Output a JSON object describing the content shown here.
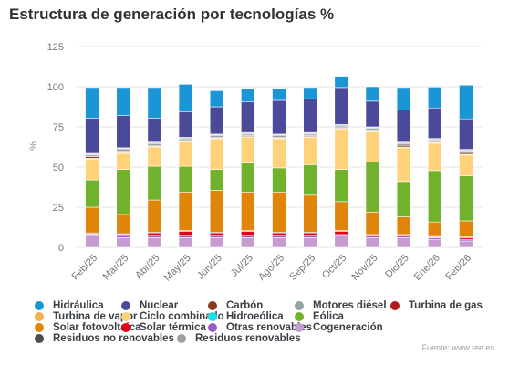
{
  "title": "Estructura de generación por tecnologías %",
  "source": "Fuente: www.ree.es",
  "chart_data": {
    "type": "bar",
    "stacked": true,
    "ylabel": "%",
    "ylim": [
      0,
      125
    ],
    "yticks": [
      0,
      25,
      50,
      75,
      100,
      125
    ],
    "grid": true,
    "legend_position": "bottom",
    "categories": [
      "Feb/25",
      "Mar/25",
      "Abr/25",
      "May/25",
      "Jun/25",
      "Jul/25",
      "Ago/25",
      "Sep/25",
      "Oct/25",
      "Nov/25",
      "Dic/25",
      "Ene/26",
      "Feb/26"
    ],
    "series": [
      {
        "name": "Cogeneración",
        "color": "#c79bd1",
        "values": [
          7,
          6,
          6,
          6,
          6,
          6,
          6,
          6,
          7,
          6,
          6,
          5,
          4
        ]
      },
      {
        "name": "Otras renovables",
        "color": "#9b5bc4",
        "values": [
          1,
          1,
          1,
          1,
          1,
          1,
          1,
          1,
          1,
          1,
          1,
          1,
          1
        ]
      },
      {
        "name": "Solar térmica",
        "color": "#e3001a",
        "values": [
          0.5,
          1,
          2,
          3,
          2,
          3,
          2,
          2,
          2,
          0.5,
          0.5,
          0.3,
          1
        ]
      },
      {
        "name": "Turbina de gas",
        "color": "#b01c1c",
        "values": [
          0.5,
          0.5,
          0.5,
          0.5,
          0.5,
          0.5,
          0.5,
          0.5,
          0.5,
          0.5,
          0.5,
          0.5,
          0.5
        ]
      },
      {
        "name": "Solar fotovoltaica",
        "color": "#e0850a",
        "values": [
          16,
          12,
          20,
          24,
          26,
          24,
          25,
          23,
          18,
          14,
          11,
          9,
          10
        ]
      },
      {
        "name": "Eólica",
        "color": "#70b22c",
        "values": [
          17,
          28,
          21,
          16,
          13,
          18,
          15,
          19,
          20,
          31,
          22,
          32,
          28
        ]
      },
      {
        "name": "Ciclo combinado",
        "color": "#ffd27a",
        "values": [
          13,
          10,
          12,
          15,
          19,
          16,
          18,
          17,
          25,
          19,
          21,
          17,
          13
        ]
      },
      {
        "name": "Turbina de vapor",
        "color": "#f4b04a",
        "values": [
          0.5,
          0.5,
          0.5,
          0.5,
          0.5,
          0.5,
          0.5,
          0.5,
          0.5,
          0.5,
          0.5,
          0.5,
          0.5
        ]
      },
      {
        "name": "Carbón",
        "color": "#8b3a1a",
        "values": [
          1,
          1,
          0.5,
          0.5,
          0.5,
          0.5,
          0.5,
          0.5,
          0.5,
          0.5,
          1,
          0.5,
          1
        ]
      },
      {
        "name": "Motores diésel",
        "color": "#8fa3a5",
        "values": [
          1,
          1,
          1,
          1,
          1,
          1,
          1,
          1,
          1,
          1,
          1,
          1,
          1
        ]
      },
      {
        "name": "Hidroeólica",
        "color": "#19e0e6",
        "values": [
          0,
          0,
          0,
          0,
          0,
          0,
          0,
          0,
          0,
          0,
          0,
          0,
          0
        ]
      },
      {
        "name": "Residuos no renovables",
        "color": "#4d4d4d",
        "values": [
          0.5,
          0.5,
          0.5,
          0.5,
          0.5,
          0.5,
          0.5,
          0.5,
          0.5,
          0.5,
          0.5,
          0.5,
          0.5
        ]
      },
      {
        "name": "Residuos renovables",
        "color": "#9e9e9e",
        "values": [
          0.5,
          0.5,
          0.5,
          0.5,
          0.5,
          0.5,
          0.5,
          0.5,
          0.5,
          0.5,
          0.5,
          0.5,
          0.5
        ]
      },
      {
        "name": "Nuclear",
        "color": "#4b4a9a",
        "values": [
          22,
          20,
          15,
          16,
          17,
          19,
          21,
          21,
          23,
          16,
          20,
          19,
          19
        ]
      },
      {
        "name": "Hidráulica",
        "color": "#1a95d6",
        "values": [
          19,
          17.5,
          19,
          17,
          10,
          8,
          7,
          7,
          7,
          9,
          14,
          13,
          21
        ]
      }
    ]
  },
  "legend_rows": [
    [
      "Hidráulica",
      "Nuclear",
      "Carbón",
      "Motores diésel",
      "Turbina de gas"
    ],
    [
      "Turbina de vapor",
      "Ciclo combinado",
      "Hidroeólica",
      "Eólica"
    ],
    [
      "Solar fotovoltaica",
      "Solar térmica",
      "Otras renovables",
      "Cogeneración"
    ],
    [
      "Residuos no renovables",
      "Residuos renovables"
    ]
  ]
}
